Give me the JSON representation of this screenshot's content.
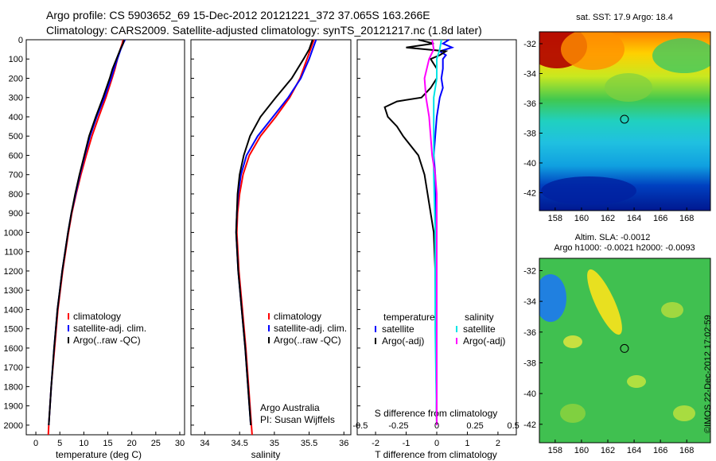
{
  "header": {
    "line1": "Argo profile: CS 5903652_69 15-Dec-2012 20121221_372 37.065S 163.266E",
    "line2": "Climatology: CARS2009. Satellite-adjusted climatology: synTS_20121217.nc (1.8d later)"
  },
  "colors": {
    "clim": "#ff0000",
    "sat": "#0000ff",
    "argo": "#000000",
    "sat_s": "#00e5e5",
    "argo_s": "#ff00ff"
  },
  "chart_data": [
    {
      "id": "temperature",
      "type": "line",
      "xlabel": "temperature (deg C)",
      "ylabel": "",
      "xlim": [
        -2,
        31
      ],
      "ylim": [
        2050,
        0
      ],
      "xticks": [
        0,
        5,
        10,
        15,
        20,
        25,
        30
      ],
      "xtick_labels": [
        "0",
        "5",
        "10",
        "15",
        "20",
        "25",
        "30"
      ],
      "yticks": [
        0,
        100,
        200,
        300,
        400,
        500,
        600,
        700,
        800,
        900,
        1000,
        1100,
        1200,
        1300,
        1400,
        1500,
        1600,
        1700,
        1800,
        1900,
        2000
      ],
      "ytick_labels": [
        "0",
        "100",
        "200",
        "300",
        "400",
        "500",
        "600",
        "700",
        "800",
        "900",
        "1000",
        "1100",
        "1200",
        "1300",
        "1400",
        "1500",
        "1600",
        "1700",
        "1800",
        "1900",
        "2000"
      ],
      "series": [
        {
          "name": "climatology",
          "color": "#ff0000",
          "depth": [
            0,
            20,
            50,
            100,
            150,
            200,
            300,
            400,
            500,
            600,
            700,
            800,
            900,
            1000,
            1200,
            1400,
            1600,
            1800,
            2000,
            2050
          ],
          "values": [
            18.2,
            18.0,
            17.6,
            17.0,
            16.5,
            15.9,
            14.6,
            13.1,
            11.7,
            10.5,
            9.4,
            8.4,
            7.5,
            6.8,
            5.6,
            4.6,
            3.9,
            3.2,
            2.7,
            2.6
          ]
        },
        {
          "name": "satellite-adj. clim.",
          "color": "#0000ff",
          "depth": [
            0,
            20,
            50,
            100,
            150,
            200,
            300,
            400,
            500,
            600,
            700,
            800,
            900,
            1000,
            1200,
            1400,
            1600,
            1800,
            2000
          ],
          "values": [
            18.6,
            18.2,
            17.7,
            17.0,
            16.3,
            15.7,
            14.3,
            12.7,
            11.3,
            10.2,
            9.2,
            8.3,
            7.4,
            6.7,
            5.5,
            4.5,
            3.8,
            3.2,
            2.7
          ]
        },
        {
          "name": "Argo(..raw -QC)",
          "color": "#000000",
          "depth": [
            0,
            20,
            50,
            100,
            150,
            200,
            300,
            400,
            500,
            600,
            700,
            800,
            900,
            1000,
            1200,
            1400,
            1600,
            1800,
            2000
          ],
          "values": [
            18.4,
            18.2,
            17.6,
            16.8,
            16.0,
            15.4,
            14.0,
            12.5,
            11.1,
            10.1,
            9.1,
            8.2,
            7.4,
            6.7,
            5.5,
            4.5,
            3.8,
            3.2,
            2.7
          ]
        }
      ],
      "legend": [
        "climatology",
        "satellite-adj. clim.",
        "Argo(..raw -QC)"
      ]
    },
    {
      "id": "salinity",
      "type": "line",
      "xlabel": "salinity",
      "xlim": [
        33.8,
        36.1
      ],
      "ylim": [
        2050,
        0
      ],
      "xticks": [
        34,
        34.5,
        35,
        35.5,
        36
      ],
      "xtick_labels": [
        "34",
        "34.5",
        "35",
        "35.5",
        "36"
      ],
      "series": [
        {
          "name": "climatology",
          "color": "#ff0000",
          "depth": [
            0,
            50,
            100,
            200,
            300,
            400,
            500,
            600,
            700,
            800,
            900,
            1000,
            1200,
            1400,
            1600,
            1800,
            2000,
            2050
          ],
          "values": [
            35.57,
            35.52,
            35.47,
            35.37,
            35.22,
            35.02,
            34.8,
            34.64,
            34.55,
            34.5,
            34.47,
            34.46,
            34.49,
            34.54,
            34.59,
            34.63,
            34.67,
            34.68
          ]
        },
        {
          "name": "satellite-adj. clim.",
          "color": "#0000ff",
          "depth": [
            0,
            50,
            100,
            200,
            300,
            400,
            500,
            600,
            700,
            800,
            900,
            1000,
            1200,
            1400,
            1600,
            1800,
            2000
          ],
          "values": [
            35.6,
            35.55,
            35.5,
            35.38,
            35.2,
            34.98,
            34.76,
            34.6,
            34.52,
            34.48,
            34.46,
            34.45,
            34.48,
            34.53,
            34.58,
            34.62,
            34.66
          ]
        },
        {
          "name": "Argo(..raw -QC)",
          "color": "#000000",
          "depth": [
            0,
            50,
            100,
            200,
            300,
            400,
            500,
            600,
            700,
            800,
            900,
            1000,
            1200,
            1400,
            1600,
            1800,
            2000
          ],
          "values": [
            35.55,
            35.5,
            35.42,
            35.25,
            35.02,
            34.8,
            34.65,
            34.56,
            34.5,
            34.47,
            34.46,
            34.45,
            34.48,
            34.53,
            34.58,
            34.62,
            34.66
          ]
        }
      ],
      "legend": [
        "climatology",
        "satellite-adj. clim.",
        "Argo(..raw -QC)"
      ],
      "annotation": [
        "Argo Australia",
        "PI: Susan Wijffels"
      ]
    },
    {
      "id": "difference",
      "type": "line",
      "xlabel_bottom": "T difference from climatology",
      "xlabel_top": "S difference from climatology",
      "xlim": [
        -2.6,
        2.6
      ],
      "ylim": [
        2050,
        0
      ],
      "xticks": [
        -2,
        -1,
        0,
        1,
        2
      ],
      "xtick_labels": [
        "-2",
        "-1",
        "0",
        "1",
        "2"
      ],
      "sticks": [
        -0.5,
        -0.25,
        0,
        0.25,
        0.5
      ],
      "stick_labels": [
        "-0.5",
        "-0.25",
        "0",
        "0.25",
        "0.5"
      ],
      "s_scale": 5,
      "series": [
        {
          "name": "T satellite",
          "color": "#0000ff",
          "depth": [
            0,
            20,
            40,
            60,
            80,
            100,
            150,
            200,
            250,
            300,
            400,
            500,
            600,
            700,
            800,
            1000,
            1200,
            1500,
            2000
          ],
          "values": [
            0.4,
            0.2,
            0.5,
            0.1,
            0.3,
            0.2,
            0.2,
            0.15,
            0.2,
            0.1,
            0.0,
            -0.05,
            -0.1,
            -0.05,
            -0.05,
            -0.05,
            -0.05,
            -0.02,
            0.0
          ]
        },
        {
          "name": "T Argo(-adj)",
          "color": "#000000",
          "depth": [
            0,
            20,
            40,
            60,
            80,
            100,
            150,
            200,
            250,
            300,
            320,
            350,
            400,
            450,
            500,
            600,
            700,
            800,
            1000,
            1200,
            1500,
            2000
          ],
          "values": [
            -0.6,
            -0.1,
            -1.0,
            0.3,
            0.1,
            -0.2,
            0.0,
            0.0,
            -0.2,
            -0.5,
            -1.3,
            -1.7,
            -1.6,
            -1.3,
            -1.1,
            -0.6,
            -0.4,
            -0.3,
            -0.1,
            -0.05,
            -0.03,
            0.0
          ]
        },
        {
          "name": "S satellite",
          "color": "#00e5e5",
          "depth": [
            0,
            50,
            100,
            200,
            300,
            400,
            500,
            700,
            1000,
            1500,
            2000
          ],
          "values": [
            0.03,
            0.02,
            0.0,
            0.0,
            -0.02,
            -0.02,
            -0.02,
            -0.02,
            -0.01,
            -0.01,
            0.0
          ]
        },
        {
          "name": "S Argo(-adj)",
          "color": "#ff00ff",
          "depth": [
            0,
            50,
            100,
            200,
            300,
            400,
            500,
            600,
            700,
            800,
            1000,
            1500,
            2000
          ],
          "values": [
            -0.03,
            -0.02,
            -0.05,
            -0.08,
            -0.07,
            -0.05,
            -0.04,
            -0.03,
            -0.01,
            0.0,
            0.0,
            0.0,
            0.0
          ]
        }
      ],
      "legend": {
        "temp_title": "temperature",
        "sal_title": "salinity",
        "satellite": "satellite",
        "argo": "Argo(-adj)"
      }
    },
    {
      "id": "sst-map",
      "type": "heatmap",
      "title": "sat. SST: 17.9 Argo: 18.4",
      "xticks": [
        158,
        160,
        162,
        164,
        166,
        168
      ],
      "yticks": [
        -32,
        -34,
        -36,
        -38,
        -40,
        -42
      ],
      "xlim": [
        156.8,
        169.8
      ],
      "ylim": [
        -43.2,
        -31.2
      ],
      "marker": {
        "lon": 163.266,
        "lat": -37.065
      }
    },
    {
      "id": "sla-map",
      "type": "heatmap",
      "title_line1": "Altim. SLA: -0.0012",
      "title_line2": "Argo h1000: -0.0021 h2000: -0.0093",
      "xticks": [
        158,
        160,
        162,
        164,
        166,
        168
      ],
      "yticks": [
        -32,
        -34,
        -36,
        -38,
        -40,
        -42
      ],
      "xlim": [
        156.8,
        169.8
      ],
      "ylim": [
        -43.2,
        -31.2
      ],
      "marker": {
        "lon": 163.266,
        "lat": -37.065
      }
    }
  ],
  "footer": {
    "stamp": "©IMOS 22-Dec-2012 17:02:59"
  }
}
